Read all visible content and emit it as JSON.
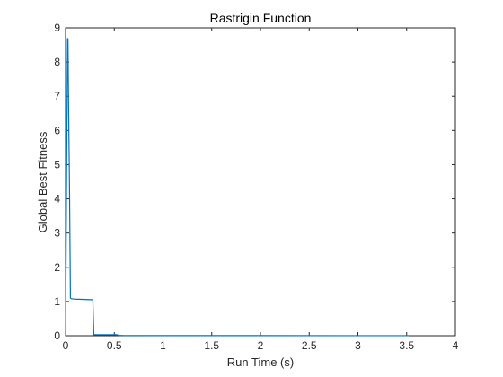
{
  "chart_data": {
    "type": "line",
    "title": "Rastrigin Function",
    "xlabel": "Run Time (s)",
    "ylabel": "Global Best Fitness",
    "xlim": [
      0,
      4
    ],
    "ylim": [
      0,
      9
    ],
    "xticks": [
      0,
      0.5,
      1,
      1.5,
      2,
      2.5,
      3,
      3.5,
      4
    ],
    "xtick_labels": [
      "0",
      "0.5",
      "1",
      "1.5",
      "2",
      "2.5",
      "3",
      "3.5",
      "4"
    ],
    "yticks": [
      0,
      1,
      2,
      3,
      4,
      5,
      6,
      7,
      8,
      9
    ],
    "ytick_labels": [
      "0",
      "1",
      "2",
      "3",
      "4",
      "5",
      "6",
      "7",
      "8",
      "9"
    ],
    "grid": false,
    "legend": "none",
    "series": [
      {
        "color": "#0072bd",
        "x": [
          0.0,
          0.02,
          0.025,
          0.03,
          0.04,
          0.05,
          0.06,
          0.1,
          0.2,
          0.28,
          0.29,
          0.5,
          0.52,
          0.55,
          0.6,
          1.0,
          2.0,
          3.0,
          3.5,
          3.52
        ],
        "y": [
          0.0,
          8.7,
          8.65,
          7.0,
          4.5,
          1.1,
          1.08,
          1.07,
          1.06,
          1.05,
          0.03,
          0.03,
          0.03,
          0.01,
          0.005,
          0.004,
          0.003,
          0.002,
          0.002,
          0.002
        ]
      }
    ]
  }
}
